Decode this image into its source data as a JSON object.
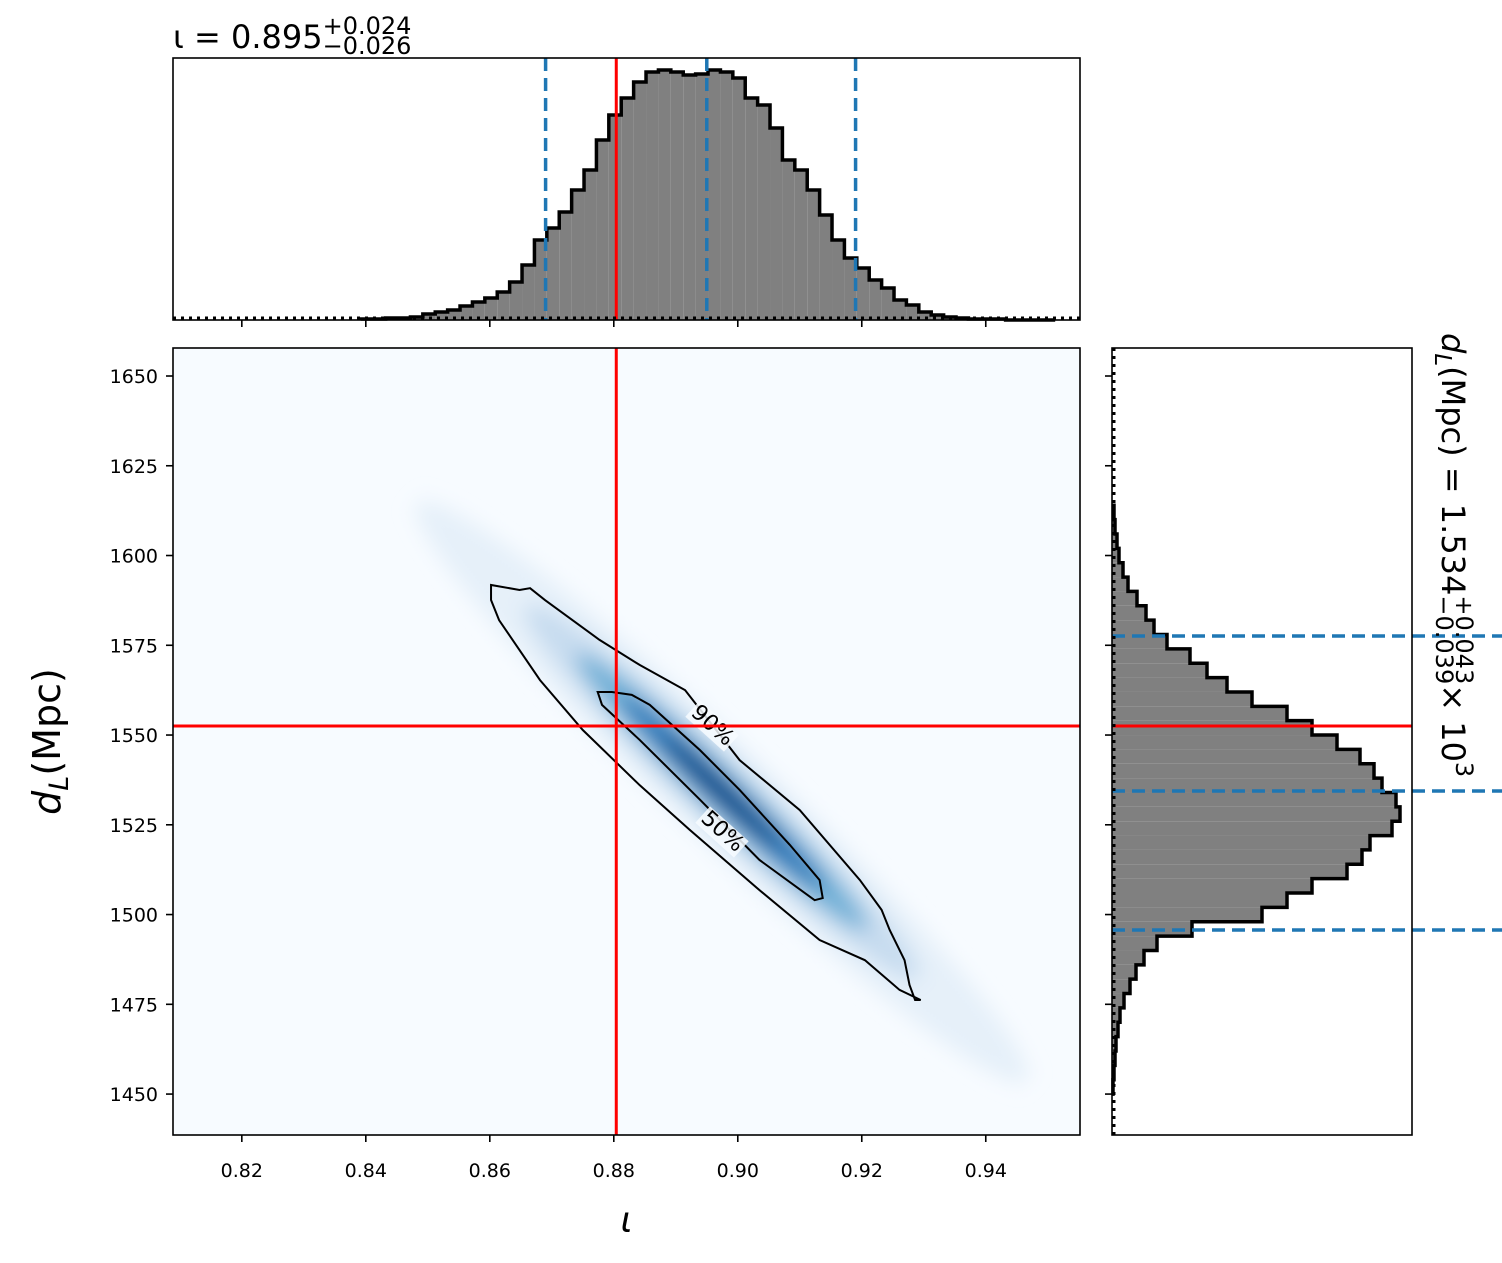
{
  "chart_data": [
    {
      "type": "histogram",
      "orientation": "vertical",
      "title": {
        "main": "ι = 0.895",
        "upper": "+0.024",
        "lower": "−0.026"
      },
      "bins": [
        0.8392,
        0.8412,
        0.8432,
        0.8452,
        0.8472,
        0.8492,
        0.8512,
        0.8532,
        0.8552,
        0.8572,
        0.8592,
        0.8612,
        0.8632,
        0.8652,
        0.8672,
        0.8692,
        0.8712,
        0.8732,
        0.8752,
        0.8772,
        0.8792,
        0.8812,
        0.8832,
        0.8852,
        0.8872,
        0.8892,
        0.8912,
        0.8932,
        0.8952,
        0.8972,
        0.8992,
        0.9012,
        0.9032,
        0.9052,
        0.9072,
        0.9092,
        0.9112,
        0.9132,
        0.9152,
        0.9172,
        0.9192,
        0.9212,
        0.9232,
        0.9252,
        0.9272,
        0.9292,
        0.9312,
        0.9332,
        0.9352,
        0.9372,
        0.9392,
        0.9412,
        0.9432,
        0.9452,
        0.9472,
        0.9492,
        0.9512
      ],
      "counts": [
        1,
        1,
        2,
        2,
        3,
        6,
        8,
        10,
        14,
        18,
        22,
        28,
        38,
        55,
        80,
        92,
        108,
        130,
        150,
        180,
        205,
        222,
        238,
        248,
        250,
        248,
        245,
        246,
        250,
        248,
        242,
        222,
        215,
        192,
        160,
        150,
        130,
        105,
        80,
        62,
        52,
        40,
        32,
        20,
        15,
        8,
        5,
        3,
        2,
        1,
        1,
        1,
        0,
        0,
        0,
        0
      ],
      "xlim": [
        0.8089,
        0.9552
      ],
      "xticks": [
        0.82,
        0.84,
        0.86,
        0.88,
        {
          "value": 0.9,
          "label": "0.90"
        },
        0.92,
        0.94
      ],
      "ylim": [
        0,
        262
      ],
      "color": "#808080",
      "edge_color": "#000000",
      "quantiles": [
        0.869,
        0.895,
        0.919
      ],
      "quantile_color": "#1f77b4",
      "truth": 0.8804,
      "truth_color": "#ff0000"
    },
    {
      "type": "density",
      "xlabel": "ι",
      "ylabel": {
        "symbol": "d",
        "subscript": "L",
        "unit": " (Mpc)"
      },
      "xlim": [
        0.8089,
        0.9552
      ],
      "ylim": [
        1438.6,
        1657.8
      ],
      "xticks": [
        0.82,
        0.84,
        0.86,
        0.88,
        {
          "value": 0.9,
          "label": "0.90"
        },
        0.92,
        0.94
      ],
      "yticks": [
        1450,
        1475,
        1500,
        1525,
        1550,
        1575,
        1600,
        1625,
        1650
      ],
      "contours": [
        {
          "label": "90%",
          "x": [
            0.8602,
            0.8602,
            0.8615,
            0.8681,
            0.875,
            0.8842,
            0.8923,
            0.9035,
            0.9132,
            0.9205,
            0.9261,
            0.9295,
            0.9286,
            0.9277,
            0.9269,
            0.9245,
            0.9232,
            0.9197,
            0.91,
            0.9003,
            0.8915,
            0.8842,
            0.8777,
            0.8689,
            0.8665,
            0.8648
          ],
          "y": [
            1591.8,
            1587.6,
            1582,
            1565.3,
            1551.4,
            1536,
            1523.5,
            1506.8,
            1492.9,
            1487.3,
            1479,
            1476.2,
            1476.2,
            1480.4,
            1487.3,
            1495.7,
            1501.3,
            1509.6,
            1529.1,
            1543,
            1562.5,
            1569.5,
            1576.5,
            1587.6,
            1590.9,
            1590.4
          ]
        },
        {
          "label": "50%",
          "x": [
            0.8774,
            0.8781,
            0.8842,
            0.8939,
            0.9035,
            0.9124,
            0.9137,
            0.9132,
            0.9084,
            0.9003,
            0.8939,
            0.8858,
            0.8829,
            0.8797
          ],
          "y": [
            1562,
            1558.4,
            1548.6,
            1532,
            1515.2,
            1504,
            1504.6,
            1509.6,
            1519.4,
            1534.7,
            1545.8,
            1558.4,
            1561.2,
            1562
          ]
        }
      ],
      "truth_x": 0.8804,
      "truth_y": 1552.5,
      "truth_color": "#ff0000"
    },
    {
      "type": "histogram",
      "orientation": "horizontal",
      "title": {
        "symbol": "d",
        "subscript": "L",
        "main": " (Mpc) = 1.534",
        "upper": "+0.043",
        "lower": "−0.039",
        "scale": " × 10",
        "exponent": "3"
      },
      "bins": [
        1450,
        1454,
        1458,
        1462,
        1466,
        1470,
        1474,
        1478,
        1482,
        1486,
        1490,
        1494,
        1498,
        1502,
        1506,
        1510,
        1514,
        1518,
        1522,
        1526,
        1530,
        1534,
        1538,
        1542,
        1546,
        1550,
        1554,
        1558,
        1562,
        1566,
        1570,
        1574,
        1578,
        1582,
        1586,
        1590,
        1594,
        1598,
        1602,
        1606,
        1610,
        1614
      ],
      "counts": [
        1,
        2,
        3,
        4,
        6,
        8,
        12,
        18,
        24,
        32,
        45,
        80,
        150,
        175,
        200,
        235,
        250,
        258,
        280,
        288,
        284,
        270,
        262,
        248,
        225,
        200,
        175,
        140,
        115,
        95,
        78,
        55,
        42,
        34,
        25,
        16,
        11,
        7,
        5,
        3,
        2
      ],
      "ylim": [
        1438.6,
        1657.8
      ],
      "yticks": [
        1450,
        1475,
        1500,
        1525,
        1550,
        1575,
        1600,
        1625,
        1650
      ],
      "xlim": [
        0,
        300
      ],
      "color": "#808080",
      "edge_color": "#000000",
      "quantiles": [
        1495.7,
        1534.4,
        1577.6
      ],
      "quantile_color": "#1f77b4",
      "truth": 1552.5,
      "truth_color": "#ff0000"
    }
  ]
}
